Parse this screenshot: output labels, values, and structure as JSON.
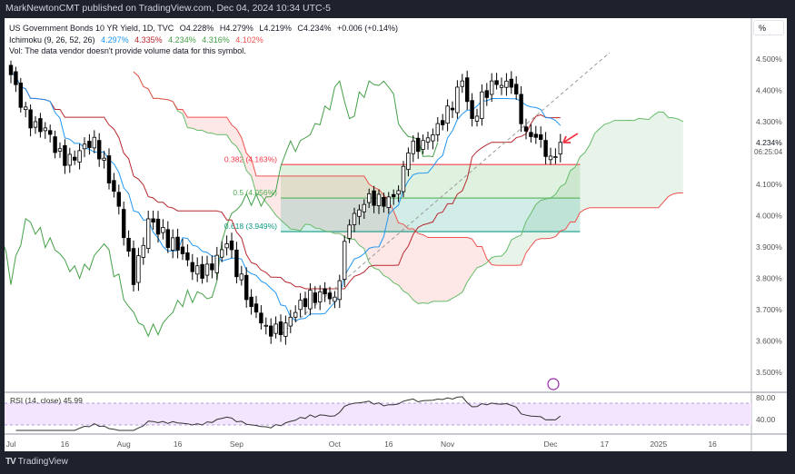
{
  "header": {
    "published": "MarkNewtonCMT published on TradingView.com, Dec 04, 2024 10:34 UTC-5"
  },
  "legend": {
    "symbol": "US Government Bonds 10 YR Yield, 1D, TVC",
    "open": "O4.228%",
    "high": "H4.279%",
    "low": "L4.219%",
    "close": "C4.234%",
    "change": "+0.006 (+0.14%)",
    "ichimoku_label": "Ichimoku (9, 26, 52, 26)",
    "ichimoku_values": [
      "4.297%",
      "4.335%",
      "4.234%",
      "4.316%",
      "4.102%"
    ],
    "vol_note": "Vol: The data vendor doesn't provide volume data for this symbol."
  },
  "colors": {
    "tenkan": "#2196f3",
    "kijun": "#b7282e",
    "chikou": "#43a047",
    "spanA": "#66bb6a",
    "spanB": "#ef5350",
    "up": "#ffffff",
    "down": "#000000",
    "fib382": "#f23645",
    "fib5": "#4caf50",
    "fib618": "#089981",
    "rsi": "#333333",
    "rsiBg": "#f3e5fd"
  },
  "price_axis": {
    "unit_button": "%",
    "labels": [
      "4.500%",
      "4.400%",
      "4.300%",
      "4.100%",
      "4.000%",
      "3.900%",
      "3.800%",
      "3.700%",
      "3.600%",
      "3.500%"
    ],
    "values": [
      4.5,
      4.4,
      4.3,
      4.1,
      4.0,
      3.9,
      3.8,
      3.7,
      3.6,
      3.5
    ],
    "last_price": "4.234%",
    "countdown": "06:25:04"
  },
  "rsi": {
    "label": "RSI (14, close)",
    "value": "45.99",
    "axis_labels": [
      "80.00",
      "40.00"
    ]
  },
  "time_axis": [
    {
      "label": "Jul",
      "date": "2024-07-01"
    },
    {
      "label": "16",
      "date": "2024-07-16"
    },
    {
      "label": "Aug",
      "date": "2024-08-01"
    },
    {
      "label": "16",
      "date": "2024-08-16"
    },
    {
      "label": "Sep",
      "date": "2024-09-03"
    },
    {
      "label": "Oct",
      "date": "2024-10-01"
    },
    {
      "label": "16",
      "date": "2024-10-16"
    },
    {
      "label": "Nov",
      "date": "2024-11-01"
    },
    {
      "label": "Dec",
      "date": "2024-12-02"
    },
    {
      "label": "17",
      "date": "2024-12-17"
    },
    {
      "label": "2025",
      "date": "2025-01-01"
    },
    {
      "label": "16",
      "date": "2025-01-16"
    }
  ],
  "footer": {
    "logo_text": "TradingView"
  },
  "chart_data": {
    "type": "candlestick",
    "title": "US Government Bonds 10 YR Yield, 1D, TVC",
    "ylabel": "%",
    "ylim": [
      3.45,
      4.55
    ],
    "close_anchors": [
      {
        "d": "2024-07-01",
        "c": 4.45
      },
      {
        "d": "2024-07-05",
        "c": 4.28
      },
      {
        "d": "2024-07-10",
        "c": 4.28
      },
      {
        "d": "2024-07-16",
        "c": 4.16
      },
      {
        "d": "2024-07-24",
        "c": 4.25
      },
      {
        "d": "2024-07-31",
        "c": 4.03
      },
      {
        "d": "2024-08-05",
        "c": 3.78
      },
      {
        "d": "2024-08-08",
        "c": 3.99
      },
      {
        "d": "2024-08-16",
        "c": 3.89
      },
      {
        "d": "2024-08-23",
        "c": 3.8
      },
      {
        "d": "2024-08-30",
        "c": 3.91
      },
      {
        "d": "2024-09-06",
        "c": 3.71
      },
      {
        "d": "2024-09-11",
        "c": 3.65
      },
      {
        "d": "2024-09-16",
        "c": 3.62
      },
      {
        "d": "2024-09-20",
        "c": 3.73
      },
      {
        "d": "2024-09-27",
        "c": 3.75
      },
      {
        "d": "2024-10-01",
        "c": 3.74
      },
      {
        "d": "2024-10-04",
        "c": 3.97
      },
      {
        "d": "2024-10-10",
        "c": 4.07
      },
      {
        "d": "2024-10-15",
        "c": 4.03
      },
      {
        "d": "2024-10-18",
        "c": 4.08
      },
      {
        "d": "2024-10-22",
        "c": 4.2
      },
      {
        "d": "2024-10-25",
        "c": 4.24
      },
      {
        "d": "2024-10-31",
        "c": 4.29
      },
      {
        "d": "2024-11-06",
        "c": 4.43
      },
      {
        "d": "2024-11-08",
        "c": 4.31
      },
      {
        "d": "2024-11-14",
        "c": 4.43
      },
      {
        "d": "2024-11-20",
        "c": 4.41
      },
      {
        "d": "2024-11-25",
        "c": 4.27
      },
      {
        "d": "2024-11-27",
        "c": 4.25
      },
      {
        "d": "2024-12-02",
        "c": 4.19
      },
      {
        "d": "2024-12-04",
        "c": 4.234
      }
    ],
    "fib_levels": [
      {
        "ratio": 0.382,
        "value": 4.163,
        "label": "0.382 (4.163%)"
      },
      {
        "ratio": 0.5,
        "value": 4.056,
        "label": "0.5 (4.056%)"
      },
      {
        "ratio": 0.618,
        "value": 3.949,
        "label": "0.618 (3.949%)"
      }
    ],
    "fib_range": {
      "start": "2024-09-16",
      "end": "2024-12-10"
    },
    "trendline": {
      "from": {
        "d": "2024-09-16",
        "p": 3.62
      },
      "to": {
        "d": "2024-12-18",
        "p": 4.52
      }
    },
    "rsi_levels": [
      70,
      30
    ]
  }
}
